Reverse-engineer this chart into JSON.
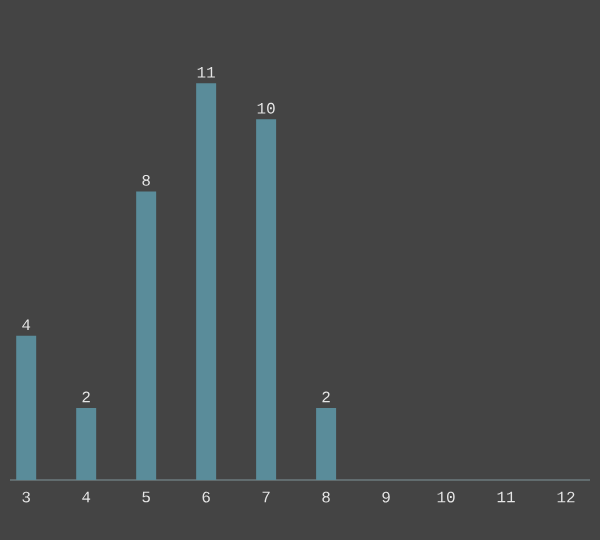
{
  "chart_data": {
    "type": "bar",
    "categories": [
      "3",
      "4",
      "5",
      "6",
      "7",
      "8",
      "9",
      "10",
      "11",
      "12"
    ],
    "values": [
      4,
      2,
      8,
      11,
      10,
      2,
      0,
      0,
      0,
      0
    ],
    "value_labels": [
      "4",
      "2",
      "8",
      "11",
      "10",
      "2",
      null,
      null,
      null,
      null
    ],
    "color": "#5a8c9a"
  }
}
